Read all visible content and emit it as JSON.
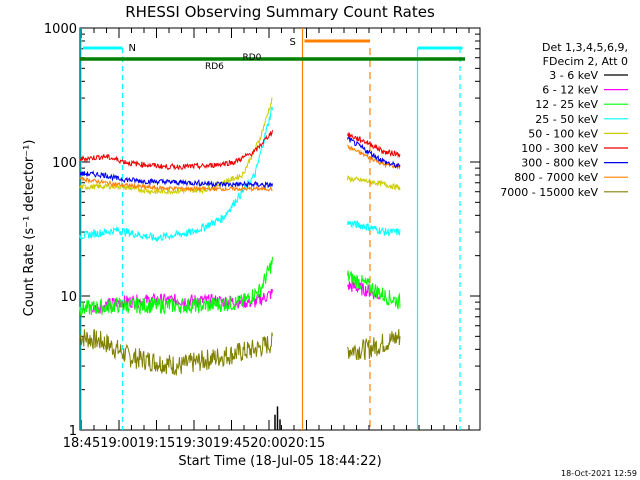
{
  "chart_data": {
    "type": "line",
    "title": "RHESSI Observing Summary Count Rates",
    "xlabel": "Start Time (18-Jul-05 18:44:22)",
    "ylabel": "Count Rate (s⁻¹ detector⁻¹)",
    "yscale": "log",
    "ylim": [
      1,
      1000
    ],
    "xlim_min": [
      0,
      160
    ],
    "x_tick_labels": [
      "18:45",
      "19:00",
      "19:15",
      "19:30",
      "19:45",
      "20:00",
      "20:15"
    ],
    "x_tick_minutes": [
      0.6,
      15.6,
      30.6,
      45.6,
      60.6,
      75.6,
      90.6
    ],
    "y_tick_labels": [
      "1",
      "10",
      "100",
      "1000"
    ],
    "y_tick_values": [
      1,
      10,
      100,
      1000
    ],
    "legend_header": [
      "Det 1,3,4,5,6,9,",
      "FDecim 2, Att 0"
    ],
    "timestamp": "18-Oct-2021 12:59",
    "annotations": {
      "saa": "S",
      "night": "N",
      "rd": [
        "RD0",
        "RD6"
      ]
    },
    "colors": {
      "3-6": "#000000",
      "6-12": "#ff00ff",
      "12-25": "#00ff00",
      "25-50": "#00ffff",
      "50-100": "#cccc00",
      "100-300": "#ee0000",
      "300-800": "#0000ee",
      "800-7000": "#ff8000",
      "7000-15000": "#808000",
      "night": "#00ffff",
      "saa": "#ff8000",
      "rd": "#008000"
    },
    "series": [
      {
        "name": "3 - 6 keV",
        "key": "3-6"
      },
      {
        "name": "6 - 12 keV",
        "key": "6-12"
      },
      {
        "name": "12 - 25 keV",
        "key": "12-25"
      },
      {
        "name": "25 - 50 keV",
        "key": "25-50"
      },
      {
        "name": "50 - 100 keV",
        "key": "50-100"
      },
      {
        "name": "100 - 300 keV",
        "key": "100-300"
      },
      {
        "name": "300 - 800 keV",
        "key": "300-800"
      },
      {
        "name": "800 - 7000 keV",
        "key": "800-7000"
      },
      {
        "name": "7000 - 15000 keV",
        "key": "7000-15000"
      }
    ],
    "segments_minutes": {
      "seg1": [
        0,
        77
      ],
      "seg2": [
        107,
        128
      ]
    },
    "series_values": {
      "100-300": {
        "seg1": [
          [
            0,
            105
          ],
          [
            10,
            110
          ],
          [
            20,
            98
          ],
          [
            35,
            92
          ],
          [
            50,
            93
          ],
          [
            62,
            100
          ],
          [
            70,
            120
          ],
          [
            77,
            170
          ]
        ],
        "seg2": [
          [
            107,
            160
          ],
          [
            115,
            140
          ],
          [
            122,
            118
          ],
          [
            128,
            115
          ]
        ]
      },
      "300-800": {
        "seg1": [
          [
            0,
            82
          ],
          [
            10,
            80
          ],
          [
            15,
            75
          ],
          [
            25,
            72
          ],
          [
            45,
            70
          ],
          [
            60,
            68
          ],
          [
            70,
            68
          ],
          [
            77,
            67
          ]
        ],
        "seg2": [
          [
            107,
            150
          ],
          [
            115,
            120
          ],
          [
            122,
            100
          ],
          [
            128,
            92
          ]
        ]
      },
      "800-7000": {
        "seg1": [
          [
            0,
            75
          ],
          [
            15,
            68
          ],
          [
            30,
            64
          ],
          [
            50,
            63
          ],
          [
            65,
            63
          ],
          [
            77,
            63
          ]
        ],
        "seg2": [
          [
            107,
            130
          ],
          [
            115,
            110
          ],
          [
            122,
            95
          ],
          [
            128,
            92
          ]
        ]
      },
      "50-100": {
        "seg1": [
          [
            0,
            65
          ],
          [
            15,
            66
          ],
          [
            30,
            60
          ],
          [
            50,
            62
          ],
          [
            65,
            80
          ],
          [
            72,
            150
          ],
          [
            77,
            300
          ]
        ],
        "seg2": [
          [
            107,
            75
          ],
          [
            115,
            72
          ],
          [
            122,
            68
          ],
          [
            128,
            64
          ]
        ]
      },
      "25-50": {
        "seg1": [
          [
            0,
            28
          ],
          [
            15,
            31
          ],
          [
            30,
            27
          ],
          [
            45,
            30
          ],
          [
            57,
            38
          ],
          [
            70,
            80
          ],
          [
            77,
            260
          ]
        ],
        "seg2": [
          [
            107,
            35
          ],
          [
            115,
            33
          ],
          [
            122,
            30
          ],
          [
            128,
            30
          ]
        ]
      },
      "12-25": {
        "seg1": [
          [
            0,
            8
          ],
          [
            15,
            8.5
          ],
          [
            30,
            8.5
          ],
          [
            50,
            8.5
          ],
          [
            65,
            9
          ],
          [
            72,
            11
          ],
          [
            77,
            18
          ]
        ],
        "seg2": [
          [
            107,
            14
          ],
          [
            115,
            12
          ],
          [
            122,
            10
          ],
          [
            128,
            9
          ]
        ]
      },
      "6-12": {
        "seg1": [
          [
            5,
            8
          ],
          [
            15,
            9
          ],
          [
            30,
            9.3
          ],
          [
            50,
            9.2
          ],
          [
            70,
            9
          ],
          [
            77,
            10.5
          ]
        ],
        "seg2": [
          [
            107,
            12
          ],
          [
            115,
            11
          ],
          [
            120,
            10
          ]
        ]
      },
      "7000-15000": {
        "seg1": [
          [
            0,
            5
          ],
          [
            10,
            4.5
          ],
          [
            20,
            3.5
          ],
          [
            40,
            3
          ],
          [
            55,
            3.5
          ],
          [
            70,
            4
          ],
          [
            77,
            4.5
          ]
        ],
        "seg2": [
          [
            107,
            4
          ],
          [
            115,
            4
          ],
          [
            122,
            4.5
          ],
          [
            128,
            5
          ]
        ]
      }
    }
  }
}
